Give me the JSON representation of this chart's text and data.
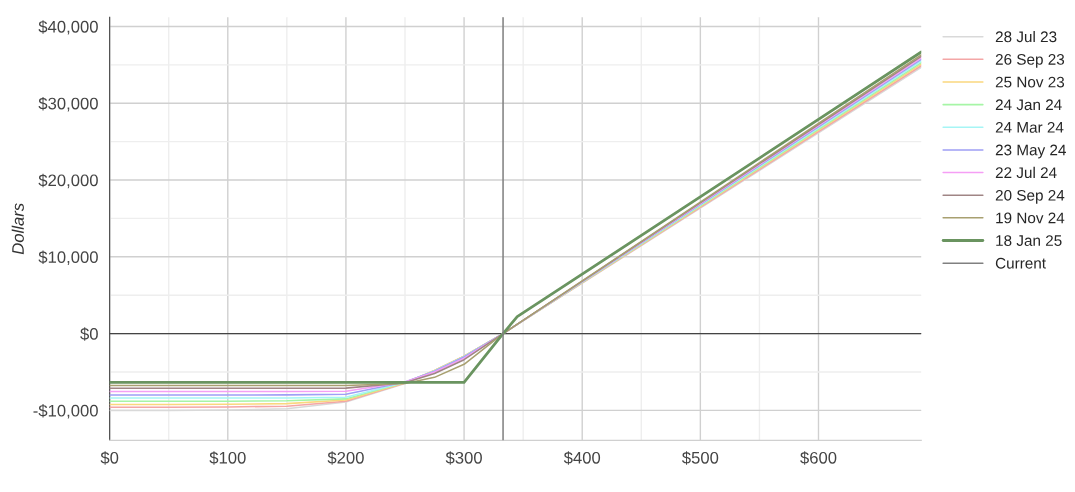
{
  "chart_data": {
    "type": "line",
    "ylabel": "Dollars",
    "x": [
      0,
      50,
      100,
      150,
      200,
      250,
      275,
      300,
      333,
      687
    ],
    "xlim": [
      0,
      687
    ],
    "ylim": [
      -13900,
      41200
    ],
    "xticks": [
      {
        "value": 0,
        "label": "$0"
      },
      {
        "value": 100,
        "label": "$100"
      },
      {
        "value": 200,
        "label": "$200"
      },
      {
        "value": 300,
        "label": "$300"
      },
      {
        "value": 400,
        "label": "$400"
      },
      {
        "value": 500,
        "label": "$500"
      },
      {
        "value": 600,
        "label": "$600"
      }
    ],
    "yticks": [
      {
        "value": -10000,
        "label": "-$10,000"
      },
      {
        "value": 0,
        "label": "$0"
      },
      {
        "value": 10000,
        "label": "$10,000"
      },
      {
        "value": 20000,
        "label": "$20,000"
      },
      {
        "value": 30000,
        "label": "$30,000"
      },
      {
        "value": 40000,
        "label": "$40,000"
      }
    ],
    "grid": true,
    "legend": "right",
    "line_style": "solid",
    "ref_lines": [
      {
        "axis": "y",
        "value": 0,
        "color": "#444444"
      }
    ],
    "series": [
      {
        "name": "28 Jul 23",
        "color": "#d9d9d9",
        "values": [
          -10000,
          -10000,
          -9950,
          -9800,
          -8900,
          -6500,
          -4800,
          -2950,
          0,
          34670
        ]
      },
      {
        "name": "26 Sep 23",
        "color": "#f4a6a6",
        "values": [
          -9590,
          -9590,
          -9560,
          -9450,
          -8800,
          -6450,
          -4800,
          -2950,
          0,
          34880
        ]
      },
      {
        "name": "25 Nov 23",
        "color": "#fad77f",
        "values": [
          -9220,
          -9220,
          -9200,
          -9120,
          -8650,
          -6400,
          -4800,
          -2950,
          0,
          35100
        ]
      },
      {
        "name": "24 Jan 24",
        "color": "#a6f5a6",
        "values": [
          -8810,
          -8810,
          -8800,
          -8750,
          -8500,
          -6350,
          -4850,
          -3000,
          0,
          35300
        ]
      },
      {
        "name": "24 Mar 24",
        "color": "#a6f5f5",
        "values": [
          -8400,
          -8400,
          -8400,
          -8380,
          -8300,
          -6350,
          -4850,
          -3000,
          0,
          35500
        ]
      },
      {
        "name": "23 May 24",
        "color": "#9f9ff5",
        "values": [
          -7990,
          -7990,
          -7990,
          -7980,
          -7900,
          -6300,
          -4900,
          -3050,
          0,
          35700
        ]
      },
      {
        "name": "22 Jul 24",
        "color": "#f59ff5",
        "values": [
          -7530,
          -7530,
          -7530,
          -7530,
          -7500,
          -6300,
          -5000,
          -3200,
          0,
          35900
        ]
      },
      {
        "name": "20 Sep 24",
        "color": "#a08585",
        "values": [
          -7120,
          -7120,
          -7120,
          -7120,
          -7100,
          -6400,
          -5200,
          -3400,
          0,
          36100
        ]
      },
      {
        "name": "19 Nov 24",
        "color": "#a8a070",
        "values": [
          -6760,
          -6760,
          -6760,
          -6760,
          -6750,
          -6500,
          -5700,
          -4000,
          0,
          36300
        ]
      },
      {
        "name": "18 Jan 25",
        "color": "#6a9460",
        "x": [
          0,
          300,
          333,
          345,
          687
        ],
        "values": [
          -6350,
          -6350,
          0,
          2200,
          36670
        ]
      },
      {
        "name": "Current",
        "color": "#808080",
        "x": [
          333,
          333
        ],
        "values": [
          -13900,
          41200
        ]
      }
    ]
  }
}
